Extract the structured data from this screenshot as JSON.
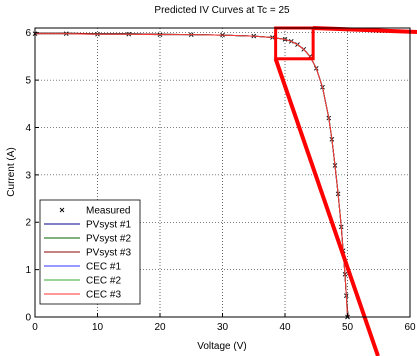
{
  "chart_data": {
    "type": "line",
    "title": "Predicted IV Curves at Tc = 25",
    "xlabel": "Voltage (V)",
    "ylabel": "Current (A)",
    "xlim": [
      0,
      60
    ],
    "ylim": [
      0,
      6.1
    ],
    "xticks": [
      0,
      10,
      20,
      30,
      40,
      50,
      60
    ],
    "yticks": [
      0,
      1,
      2,
      3,
      4,
      5,
      6
    ],
    "grid": true,
    "legend_position": "bottom-left",
    "series": [
      {
        "name": "Measured",
        "marker": "x",
        "color": "#000000",
        "x": [
          0,
          5,
          10,
          15,
          20,
          25,
          30,
          35,
          38,
          40,
          41,
          42,
          43,
          44,
          45,
          46,
          47,
          47.5,
          48,
          48.5,
          49,
          49.3,
          49.6,
          49.8,
          50.0
        ],
        "y": [
          5.98,
          5.98,
          5.97,
          5.97,
          5.96,
          5.96,
          5.95,
          5.93,
          5.9,
          5.86,
          5.82,
          5.75,
          5.65,
          5.5,
          5.25,
          4.85,
          4.2,
          3.75,
          3.2,
          2.6,
          1.9,
          1.4,
          0.9,
          0.45,
          0.0
        ]
      },
      {
        "name": "PVsyst #1",
        "color": "#00008b",
        "x": [
          0,
          5,
          10,
          15,
          20,
          25,
          30,
          35,
          38,
          40,
          41,
          42,
          43,
          44,
          45,
          46,
          47,
          47.5,
          48,
          48.5,
          49,
          49.3,
          49.6,
          49.8,
          50.1
        ],
        "y": [
          5.99,
          5.99,
          5.98,
          5.98,
          5.97,
          5.96,
          5.95,
          5.93,
          5.9,
          5.86,
          5.82,
          5.75,
          5.65,
          5.5,
          5.25,
          4.85,
          4.2,
          3.75,
          3.2,
          2.6,
          1.9,
          1.4,
          0.9,
          0.45,
          0.0
        ]
      },
      {
        "name": "PVsyst #2",
        "color": "#006400",
        "x": [
          0,
          5,
          10,
          15,
          20,
          25,
          30,
          35,
          38,
          40,
          41,
          42,
          43,
          44,
          45,
          46,
          47,
          47.5,
          48,
          48.5,
          49,
          49.3,
          49.6,
          49.8,
          50.1
        ],
        "y": [
          5.99,
          5.99,
          5.98,
          5.98,
          5.97,
          5.96,
          5.95,
          5.93,
          5.9,
          5.86,
          5.82,
          5.75,
          5.65,
          5.5,
          5.25,
          4.85,
          4.2,
          3.75,
          3.2,
          2.6,
          1.9,
          1.4,
          0.9,
          0.45,
          0.0
        ]
      },
      {
        "name": "PVsyst #3",
        "color": "#8b0000",
        "x": [
          0,
          5,
          10,
          15,
          20,
          25,
          30,
          35,
          38,
          40,
          41,
          42,
          43,
          44,
          45,
          46,
          47,
          47.5,
          48,
          48.5,
          49,
          49.3,
          49.6,
          49.8,
          50.1
        ],
        "y": [
          5.99,
          5.99,
          5.98,
          5.98,
          5.97,
          5.96,
          5.95,
          5.93,
          5.9,
          5.86,
          5.82,
          5.75,
          5.65,
          5.5,
          5.25,
          4.85,
          4.2,
          3.75,
          3.2,
          2.6,
          1.9,
          1.4,
          0.9,
          0.45,
          0.0
        ]
      },
      {
        "name": "CEC #1",
        "color": "#3333ff",
        "x": [
          0,
          5,
          10,
          15,
          20,
          25,
          30,
          35,
          38,
          40,
          41,
          42,
          43,
          44,
          45,
          46,
          47,
          47.5,
          48,
          48.5,
          49,
          49.3,
          49.6,
          49.8,
          50.0
        ],
        "y": [
          5.98,
          5.98,
          5.97,
          5.97,
          5.96,
          5.96,
          5.95,
          5.93,
          5.9,
          5.86,
          5.82,
          5.75,
          5.65,
          5.5,
          5.25,
          4.85,
          4.2,
          3.75,
          3.2,
          2.6,
          1.9,
          1.4,
          0.9,
          0.45,
          0.0
        ]
      },
      {
        "name": "CEC #2",
        "color": "#33aa33",
        "x": [
          0,
          5,
          10,
          15,
          20,
          25,
          30,
          35,
          38,
          40,
          41,
          42,
          43,
          44,
          45,
          46,
          47,
          47.5,
          48,
          48.5,
          49,
          49.3,
          49.6,
          49.8,
          50.0
        ],
        "y": [
          5.98,
          5.98,
          5.97,
          5.97,
          5.96,
          5.96,
          5.95,
          5.93,
          5.9,
          5.86,
          5.82,
          5.75,
          5.65,
          5.5,
          5.25,
          4.85,
          4.2,
          3.75,
          3.2,
          2.6,
          1.9,
          1.4,
          0.9,
          0.45,
          0.0
        ]
      },
      {
        "name": "CEC #3",
        "color": "#ff3333",
        "x": [
          0,
          5,
          10,
          15,
          20,
          25,
          30,
          35,
          38,
          40,
          41,
          42,
          43,
          44,
          45,
          46,
          47,
          47.5,
          48,
          48.5,
          49,
          49.3,
          49.6,
          49.8,
          50.0
        ],
        "y": [
          5.98,
          5.98,
          5.97,
          5.97,
          5.96,
          5.96,
          5.95,
          5.93,
          5.9,
          5.86,
          5.82,
          5.75,
          5.65,
          5.5,
          5.25,
          4.85,
          4.2,
          3.75,
          3.2,
          2.6,
          1.9,
          1.4,
          0.9,
          0.45,
          0.0
        ]
      }
    ],
    "annotation": {
      "type": "zoom-callout",
      "color": "#ff0000",
      "box_x": [
        38.5,
        44.5
      ],
      "box_y": [
        5.45,
        6.1
      ]
    }
  }
}
